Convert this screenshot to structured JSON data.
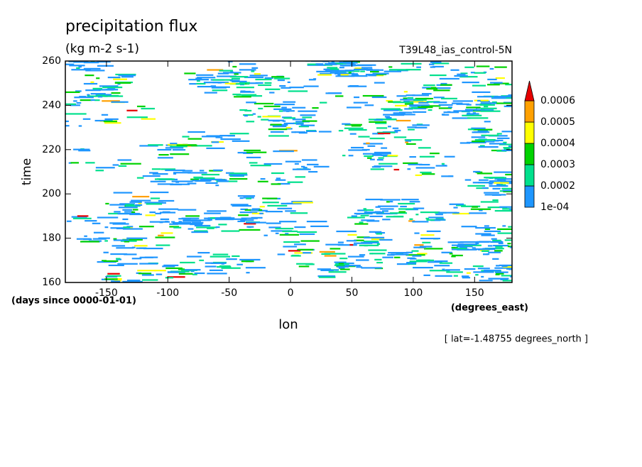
{
  "chart_data": {
    "type": "contourf",
    "title": "precipitation flux",
    "units": "(kg m-2 s-1)",
    "experiment": "T39L48_ias_control-5N",
    "x_label": "lon",
    "y_label": "time",
    "y_units": "(days since 0000-01-01)",
    "x_units": "(degrees_east)",
    "note": "[ lat=-1.48755 degrees_north ]",
    "xlim": [
      -183.5,
      180.5
    ],
    "xticks": [
      -150,
      -100,
      -50,
      0,
      50,
      100,
      150
    ],
    "ylim": [
      160,
      260
    ],
    "yticks": [
      160,
      180,
      200,
      220,
      240,
      260
    ],
    "levels": [
      {
        "value": 0.0001,
        "label": "1e-04"
      },
      0.0002,
      0.0003,
      0.0004,
      0.0005,
      0.0006
    ],
    "colors": [
      "#1e96ff",
      "#00e08c",
      "#00d200",
      "#ffff00",
      "#ffa000",
      "#e60000"
    ]
  }
}
